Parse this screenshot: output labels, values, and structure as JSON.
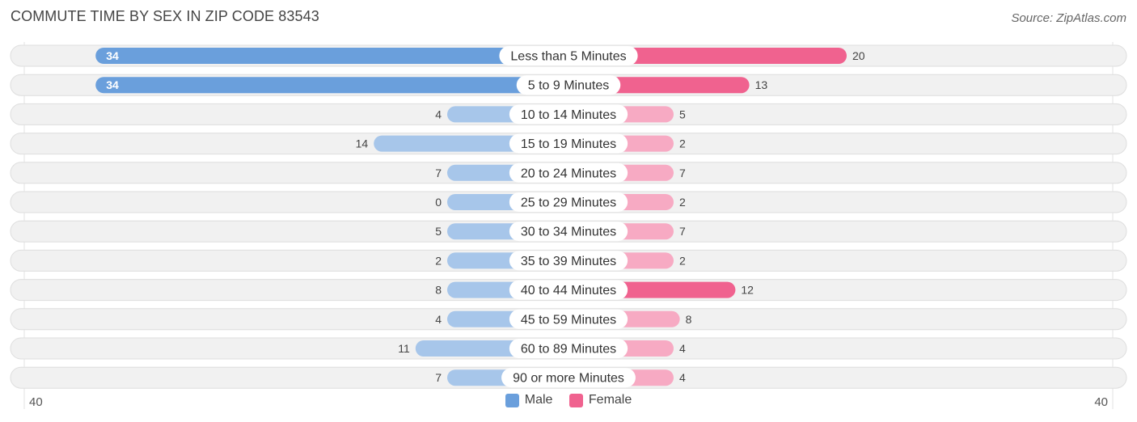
{
  "title": "COMMUTE TIME BY SEX IN ZIP CODE 83543",
  "source": "Source: ZipAtlas.com",
  "colors": {
    "male": "#6a9fdc",
    "male_light": "#a7c6ea",
    "female": "#f0628f",
    "female_light": "#f7aac3",
    "track": "#f1f1f1"
  },
  "chart_data": {
    "type": "bar",
    "orientation": "horizontal-diverging",
    "categories": [
      "Less than 5 Minutes",
      "5 to 9 Minutes",
      "10 to 14 Minutes",
      "15 to 19 Minutes",
      "20 to 24 Minutes",
      "25 to 29 Minutes",
      "30 to 34 Minutes",
      "35 to 39 Minutes",
      "40 to 44 Minutes",
      "45 to 59 Minutes",
      "60 to 89 Minutes",
      "90 or more Minutes"
    ],
    "series": [
      {
        "name": "Male",
        "values": [
          34,
          34,
          4,
          14,
          7,
          0,
          5,
          2,
          8,
          4,
          11,
          7
        ]
      },
      {
        "name": "Female",
        "values": [
          20,
          13,
          5,
          2,
          7,
          2,
          7,
          2,
          12,
          8,
          4,
          4
        ]
      }
    ],
    "xlim": [
      -40,
      40
    ],
    "axis_left_label": "40",
    "axis_right_label": "40",
    "legend_placement": "bottom-center"
  },
  "legend": {
    "male": "Male",
    "female": "Female"
  }
}
